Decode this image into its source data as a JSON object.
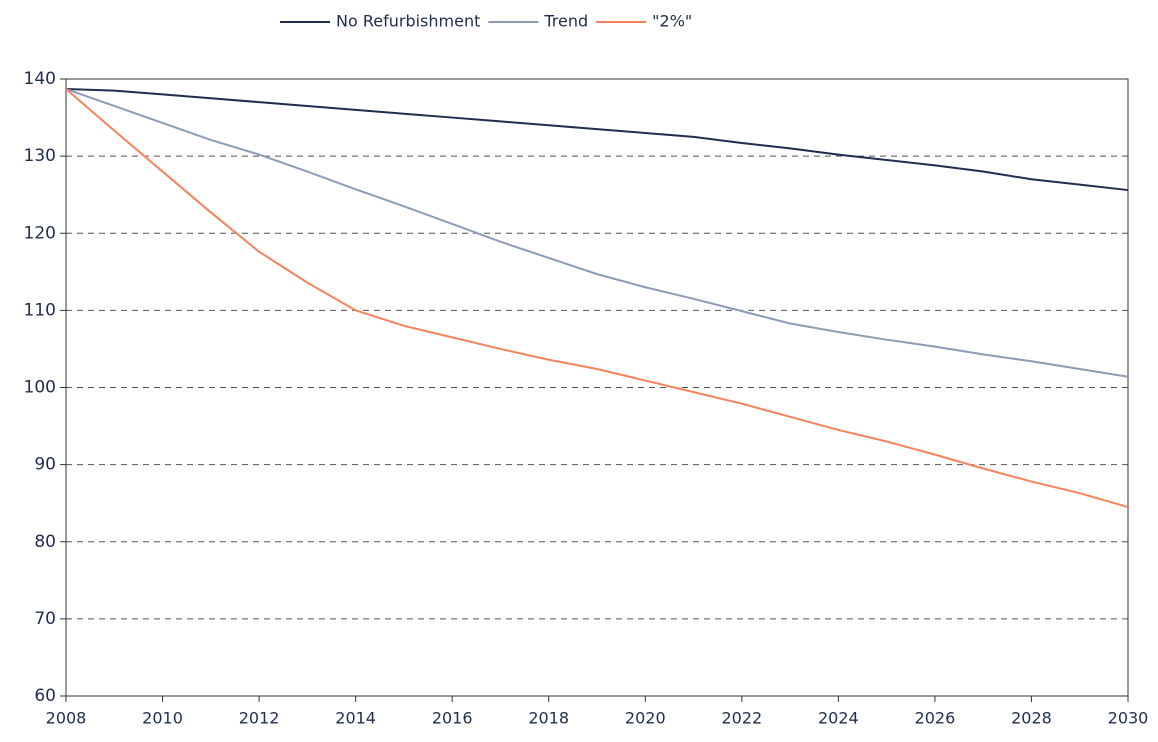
{
  "chart_data": {
    "type": "line",
    "x": [
      2008,
      2009,
      2010,
      2011,
      2012,
      2013,
      2014,
      2015,
      2016,
      2017,
      2018,
      2019,
      2020,
      2021,
      2022,
      2023,
      2024,
      2025,
      2026,
      2027,
      2028,
      2029,
      2030
    ],
    "series": [
      {
        "name": "No Refurbishment",
        "color": "#1f2d4f",
        "values": [
          138.7,
          138.5,
          138,
          137.5,
          137,
          136.5,
          136,
          135.5,
          135,
          134.5,
          134,
          133.5,
          133,
          132.5,
          131.7,
          131,
          130.2,
          129.5,
          128.8,
          128,
          127,
          126.3,
          125.6
        ]
      },
      {
        "name": "Trend",
        "color": "#8c9cb5",
        "values": [
          138.7,
          136.5,
          134.3,
          132.1,
          130.2,
          128,
          125.7,
          123.5,
          121.2,
          118.9,
          116.8,
          114.7,
          113,
          111.5,
          109.9,
          108.3,
          107.2,
          106.2,
          105.3,
          104.3,
          103.4,
          102.4,
          101.4
        ]
      },
      {
        "name": "\"2%\"",
        "color": "#f5835c",
        "values": [
          138.7,
          133.3,
          128,
          122.7,
          117.6,
          113.6,
          110,
          108,
          106.5,
          105,
          103.6,
          102.4,
          100.9,
          99.4,
          97.9,
          96.2,
          94.5,
          93,
          91.3,
          89.5,
          87.8,
          86.3,
          84.5
        ]
      }
    ],
    "xlim": [
      2008,
      2030
    ],
    "xticks": [
      2008,
      2010,
      2012,
      2014,
      2016,
      2018,
      2020,
      2022,
      2024,
      2026,
      2028,
      2030
    ],
    "ylim": [
      60,
      140
    ],
    "yticks": [
      60,
      70,
      80,
      90,
      100,
      110,
      120,
      130,
      140
    ],
    "grid": true,
    "legend": "top"
  }
}
